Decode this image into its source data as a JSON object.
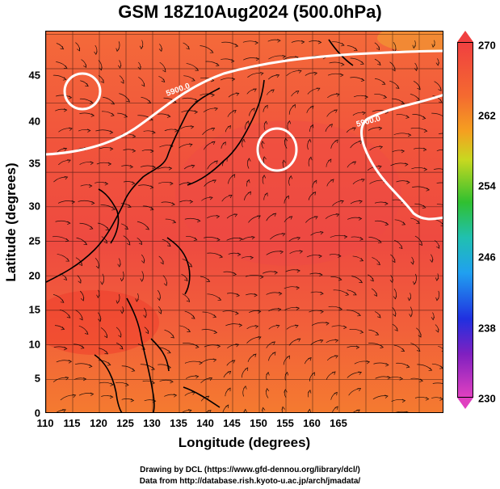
{
  "title": "GSM 18Z10Aug2024 (500.0hPa)",
  "xaxis": {
    "label": "Longitude (degrees)",
    "ticks": [
      "110",
      "115",
      "120",
      "125",
      "130",
      "135",
      "140",
      "145",
      "150",
      "155",
      "160",
      "165"
    ]
  },
  "yaxis": {
    "label": "Latitude  (degrees)",
    "ticks": [
      "0",
      "5",
      "10",
      "15",
      "20",
      "25",
      "30",
      "35",
      "40",
      "45"
    ]
  },
  "colorbar": {
    "ticks": [
      "270",
      "262",
      "254",
      "246",
      "238",
      "230"
    ],
    "colors": [
      "#f04040",
      "#f5a020",
      "#30c030",
      "#20a0f0",
      "#2030e0",
      "#e040c0"
    ]
  },
  "contour_labels": [
    "5900.0",
    "5900.0"
  ],
  "credits": [
    "Drawing by DCL (https://www.gfd-dennou.org/library/dcl/)",
    "Data from http://database.rish.kyoto-u.ac.jp/arch/jmadata/"
  ]
}
